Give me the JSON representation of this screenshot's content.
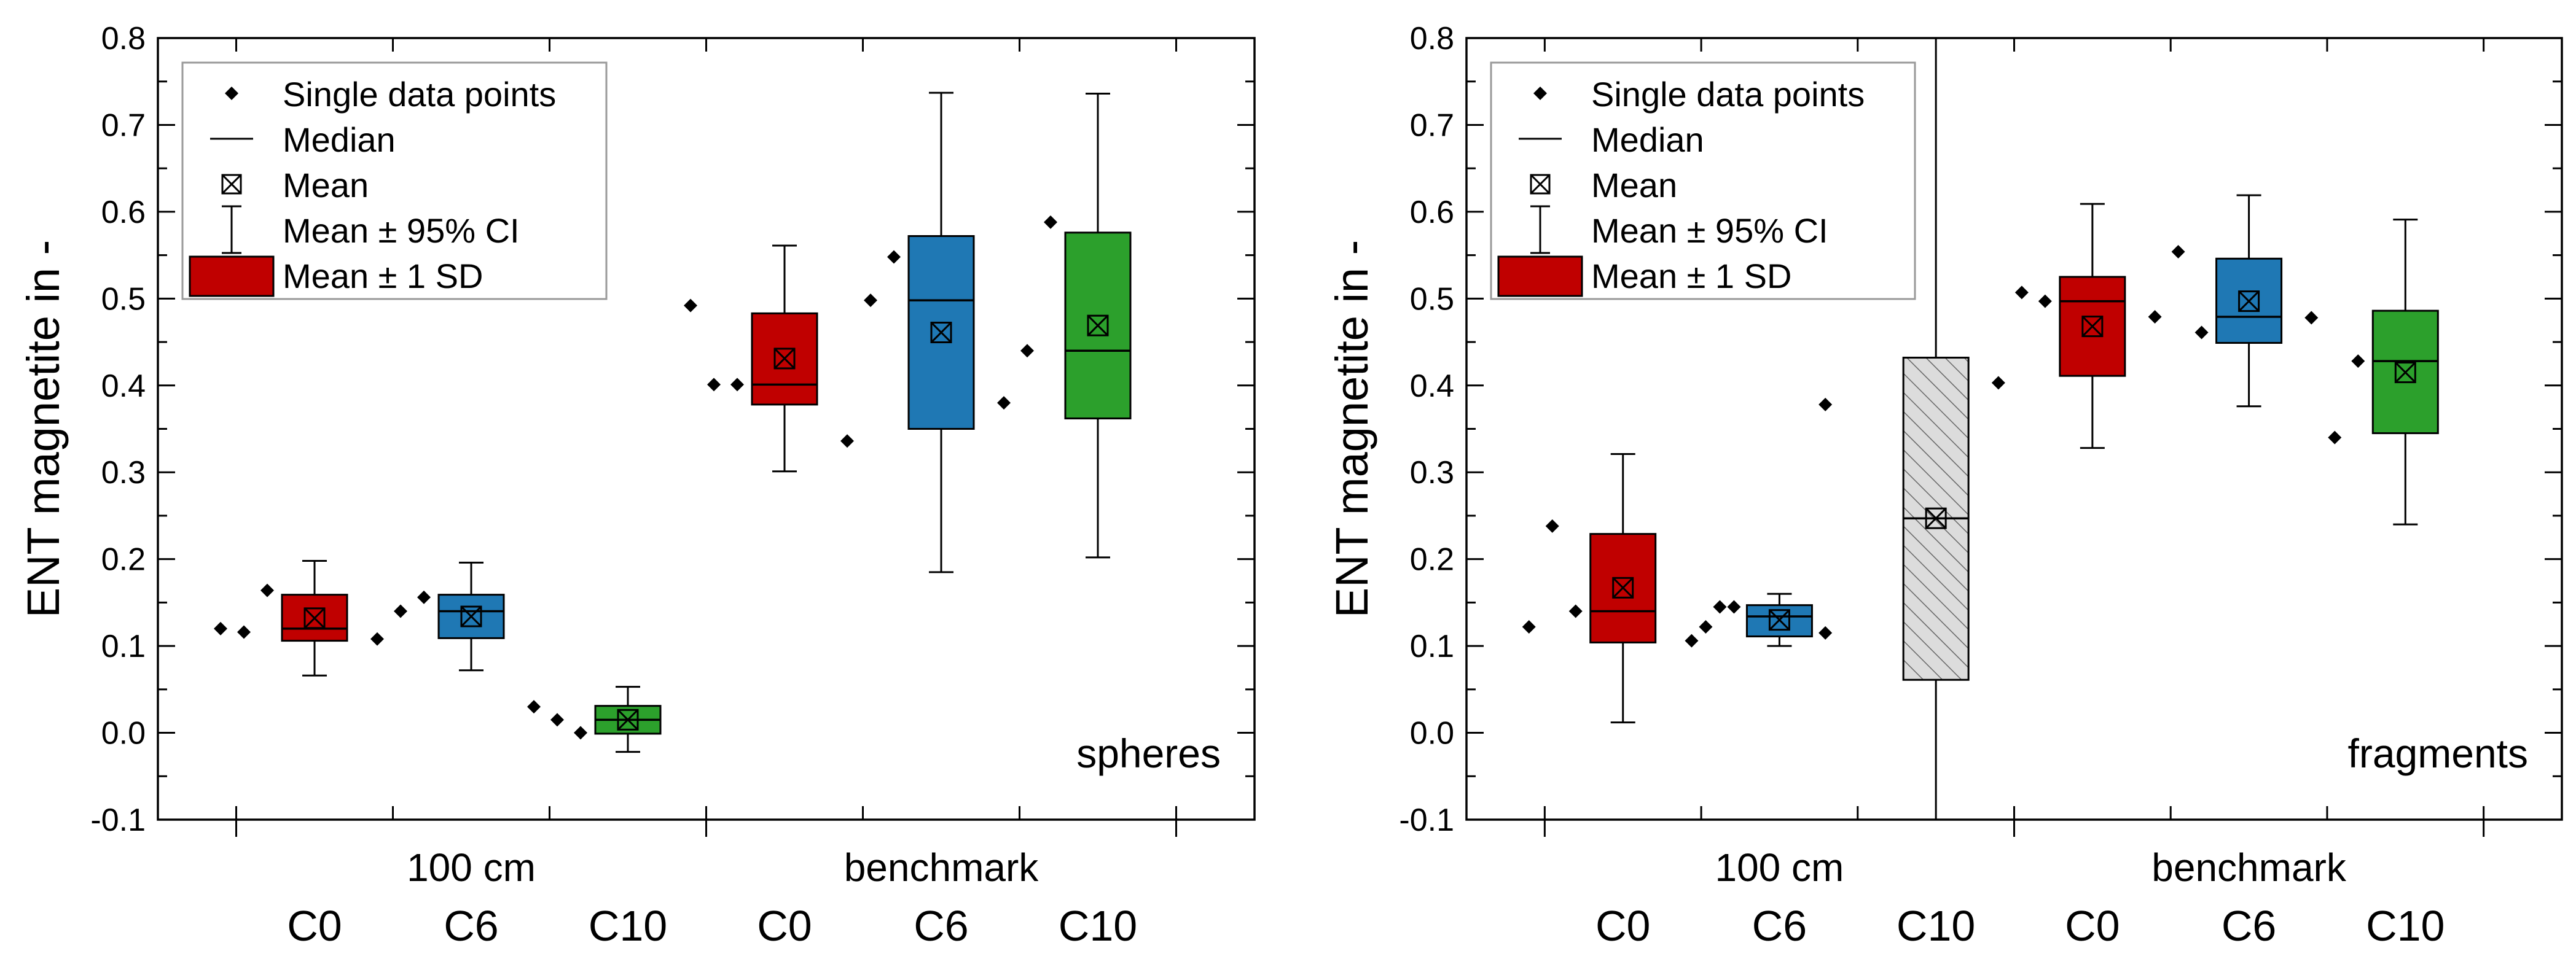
{
  "chart_data": [
    {
      "type": "box",
      "panel_label": "spheres",
      "ylabel": "ENT magnetite in -",
      "ylim": [
        -0.1,
        0.8
      ],
      "yticks": [
        "-0.1",
        "0.0",
        "0.1",
        "0.2",
        "0.3",
        "0.4",
        "0.5",
        "0.6",
        "0.7",
        "0.8"
      ],
      "groups": [
        "100 cm",
        "benchmark"
      ],
      "categories": [
        "C0",
        "C6",
        "C10",
        "C0",
        "C6",
        "C10"
      ],
      "legend": {
        "placement": "top-left",
        "entries": [
          "Single data points",
          "Median",
          "Mean",
          "Mean ± 95% CI",
          "Mean ± 1 SD"
        ]
      },
      "boxes": [
        {
          "group": "100 cm",
          "category": "C0",
          "color": "#c00000",
          "points": [
            0.12,
            0.116,
            0.164
          ],
          "box_low": 0.106,
          "box_high": 0.159,
          "median": 0.12,
          "mean": 0.132,
          "whisker_low": 0.066,
          "whisker_high": 0.198
        },
        {
          "group": "100 cm",
          "category": "C6",
          "color": "#1f78b4",
          "points": [
            0.108,
            0.14,
            0.156
          ],
          "box_low": 0.109,
          "box_high": 0.159,
          "median": 0.14,
          "mean": 0.134,
          "whisker_low": 0.072,
          "whisker_high": 0.196
        },
        {
          "group": "100 cm",
          "category": "C10",
          "color": "#2ca02c",
          "points": [
            0.03,
            0.015,
            0.0
          ],
          "box_low": -0.001,
          "box_high": 0.031,
          "median": 0.015,
          "mean": 0.015,
          "whisker_low": -0.022,
          "whisker_high": 0.053
        },
        {
          "group": "benchmark",
          "category": "C0",
          "color": "#c00000",
          "points": [
            0.492,
            0.401,
            0.401
          ],
          "box_low": 0.378,
          "box_high": 0.483,
          "median": 0.401,
          "mean": 0.431,
          "whisker_low": 0.301,
          "whisker_high": 0.561
        },
        {
          "group": "benchmark",
          "category": "C6",
          "color": "#1f78b4",
          "points": [
            0.336,
            0.498,
            0.548
          ],
          "box_low": 0.35,
          "box_high": 0.572,
          "median": 0.498,
          "mean": 0.461,
          "whisker_low": 0.185,
          "whisker_high": 0.737
        },
        {
          "group": "benchmark",
          "category": "C10",
          "color": "#2ca02c",
          "points": [
            0.38,
            0.44,
            0.588
          ],
          "box_low": 0.362,
          "box_high": 0.576,
          "median": 0.44,
          "mean": 0.469,
          "whisker_low": 0.202,
          "whisker_high": 0.736
        }
      ]
    },
    {
      "type": "box",
      "panel_label": "fragments",
      "ylabel": "ENT magnetite in -",
      "ylim": [
        -0.1,
        0.8
      ],
      "yticks": [
        "-0.1",
        "0.0",
        "0.1",
        "0.2",
        "0.3",
        "0.4",
        "0.5",
        "0.6",
        "0.7",
        "0.8"
      ],
      "groups": [
        "100 cm",
        "benchmark"
      ],
      "categories": [
        "C0",
        "C6",
        "C10",
        "C0",
        "C6",
        "C10"
      ],
      "legend": {
        "placement": "top-left",
        "entries": [
          "Single data points",
          "Median",
          "Mean",
          "Mean ± 95% CI",
          "Mean ± 1 SD"
        ]
      },
      "boxes": [
        {
          "group": "100 cm",
          "category": "C0",
          "color": "#c00000",
          "points": [
            0.122,
            0.238,
            0.14
          ],
          "box_low": 0.104,
          "box_high": 0.229,
          "median": 0.14,
          "mean": 0.167,
          "whisker_low": 0.012,
          "whisker_high": 0.321
        },
        {
          "group": "100 cm",
          "category": "C6",
          "color": "#1f78b4",
          "points": [
            0.106,
            0.122,
            0.145,
            0.145
          ],
          "box_low": 0.111,
          "box_high": 0.147,
          "median": 0.134,
          "mean": 0.13,
          "whisker_low": 0.1,
          "whisker_high": 0.16
        },
        {
          "group": "100 cm",
          "category": "C10",
          "color": "hatched",
          "points": [
            0.378,
            0.115
          ],
          "box_low": 0.061,
          "box_high": 0.432,
          "median": 0.247,
          "mean": 0.247,
          "whisker_low": -0.1,
          "whisker_high": 0.8
        },
        {
          "group": "benchmark",
          "category": "C0",
          "color": "#c00000",
          "points": [
            0.403,
            0.507,
            0.497
          ],
          "box_low": 0.411,
          "box_high": 0.525,
          "median": 0.497,
          "mean": 0.468,
          "whisker_low": 0.328,
          "whisker_high": 0.609
        },
        {
          "group": "benchmark",
          "category": "C6",
          "color": "#1f78b4",
          "points": [
            0.479,
            0.554,
            0.461
          ],
          "box_low": 0.449,
          "box_high": 0.546,
          "median": 0.479,
          "mean": 0.497,
          "whisker_low": 0.376,
          "whisker_high": 0.619
        },
        {
          "group": "benchmark",
          "category": "C10",
          "color": "#2ca02c",
          "points": [
            0.478,
            0.34,
            0.428
          ],
          "box_low": 0.345,
          "box_high": 0.486,
          "median": 0.428,
          "mean": 0.415,
          "whisker_low": 0.24,
          "whisker_high": 0.591
        }
      ]
    }
  ]
}
